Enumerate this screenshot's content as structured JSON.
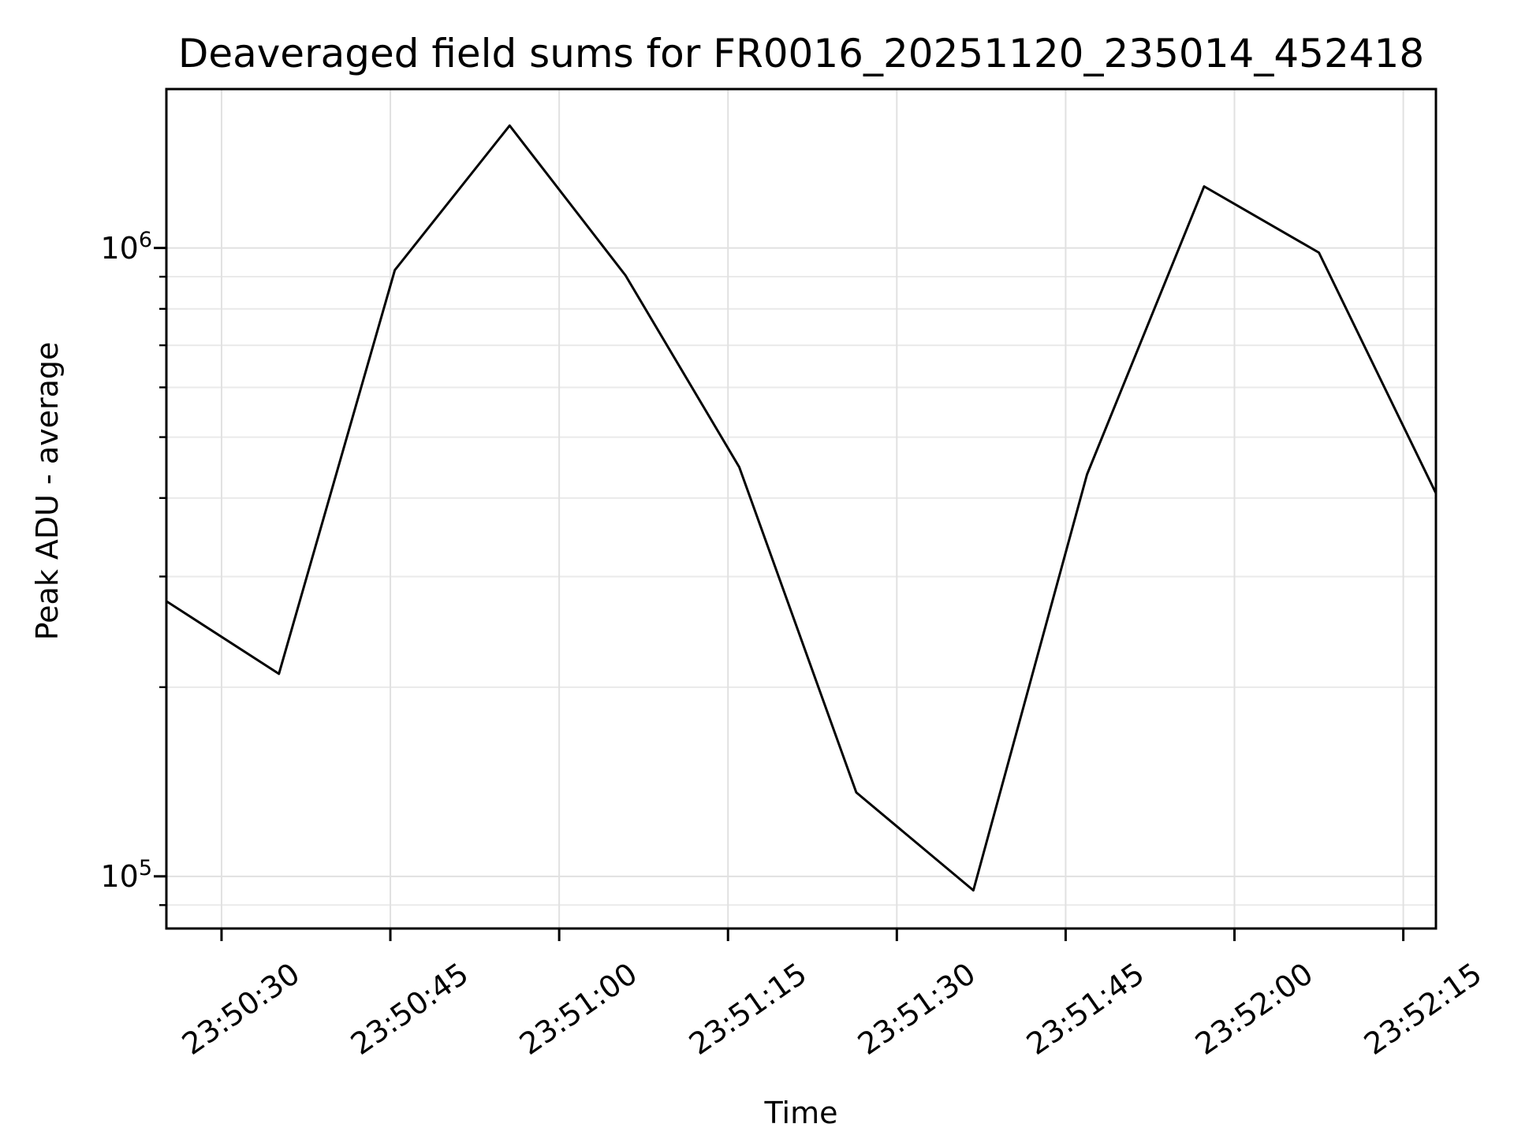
{
  "chart_data": {
    "type": "line",
    "title": "Deaveraged field sums for FR0016_20251120_235014_452418",
    "xlabel": "Time",
    "ylabel": "Peak ADU - average",
    "yscale": "log",
    "grid": true,
    "legend": "none",
    "background_color": "#ffffff",
    "line_color": "#000000",
    "spine_color": "#000000",
    "major_grid_color": "#e1e1e1",
    "minor_grid_color": "#eaeaea",
    "xlim_seconds": [
      -4.9,
      107.9
    ],
    "ylim": [
      82600,
      1790000
    ],
    "x_ticks": [
      {
        "label": "23:50:30",
        "seconds": 0
      },
      {
        "label": "23:50:45",
        "seconds": 15
      },
      {
        "label": "23:51:00",
        "seconds": 30
      },
      {
        "label": "23:51:15",
        "seconds": 45
      },
      {
        "label": "23:51:30",
        "seconds": 60
      },
      {
        "label": "23:51:45",
        "seconds": 75
      },
      {
        "label": "23:52:00",
        "seconds": 90
      },
      {
        "label": "23:52:15",
        "seconds": 105
      }
    ],
    "y_ticks": [
      {
        "base": "10",
        "exp": "5",
        "value": 100000
      },
      {
        "base": "10",
        "exp": "6",
        "value": 1000000
      }
    ],
    "y_minor_gridlines": [
      90000,
      200000,
      300000,
      400000,
      500000,
      600000,
      700000,
      800000,
      900000
    ],
    "series": [
      {
        "x_seconds": [
          -4.9,
          5.1,
          15.4,
          25.6,
          35.9,
          46.0,
          56.4,
          66.8,
          76.9,
          87.3,
          97.5,
          107.9
        ],
        "x_times": [
          "23:50:25",
          "23:50:35",
          "23:50:45",
          "23:50:56",
          "23:51:06",
          "23:51:16",
          "23:51:26",
          "23:51:37",
          "23:51:47",
          "23:51:57",
          "23:52:08",
          "23:52:18"
        ],
        "values": [
          274000,
          210000,
          922000,
          1566000,
          904000,
          448000,
          136000,
          95000,
          436000,
          1253000,
          983000,
          407000
        ]
      }
    ]
  }
}
